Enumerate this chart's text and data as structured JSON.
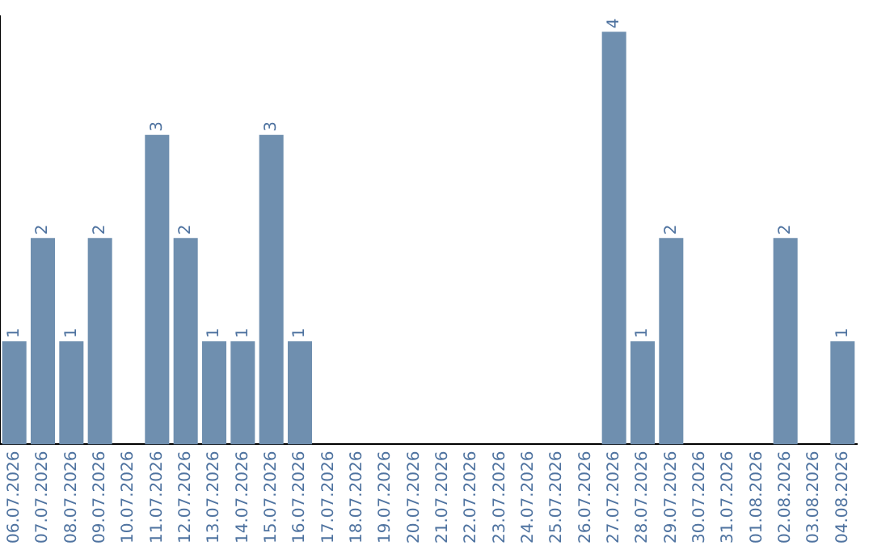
{
  "chart_data": {
    "type": "bar",
    "categories": [
      "06.07.2026",
      "07.07.2026",
      "08.07.2026",
      "09.07.2026",
      "10.07.2026",
      "11.07.2026",
      "12.07.2026",
      "13.07.2026",
      "14.07.2026",
      "15.07.2026",
      "16.07.2026",
      "17.07.2026",
      "18.07.2026",
      "19.07.2026",
      "20.07.2026",
      "21.07.2026",
      "22.07.2026",
      "23.07.2026",
      "24.07.2026",
      "25.07.2026",
      "26.07.2026",
      "27.07.2026",
      "28.07.2026",
      "29.07.2026",
      "30.07.2026",
      "31.07.2026",
      "01.08.2026",
      "02.08.2026",
      "03.08.2026",
      "04.08.2026"
    ],
    "values": [
      1,
      2,
      1,
      2,
      0,
      3,
      2,
      1,
      1,
      3,
      1,
      0,
      0,
      0,
      0,
      0,
      0,
      0,
      0,
      0,
      0,
      4,
      1,
      2,
      0,
      0,
      0,
      2,
      0,
      1
    ],
    "value_labels": [
      "1",
      "2",
      "1",
      "2",
      null,
      "3",
      "2",
      "1",
      "1",
      "3",
      "1",
      null,
      null,
      null,
      null,
      null,
      null,
      null,
      null,
      null,
      null,
      "4",
      "1",
      "2",
      null,
      null,
      null,
      "2",
      null,
      "1"
    ],
    "color": "#6f8faf",
    "ylim": [
      0,
      4.15
    ],
    "tick_labels": "x",
    "grid": false,
    "legend": false
  }
}
